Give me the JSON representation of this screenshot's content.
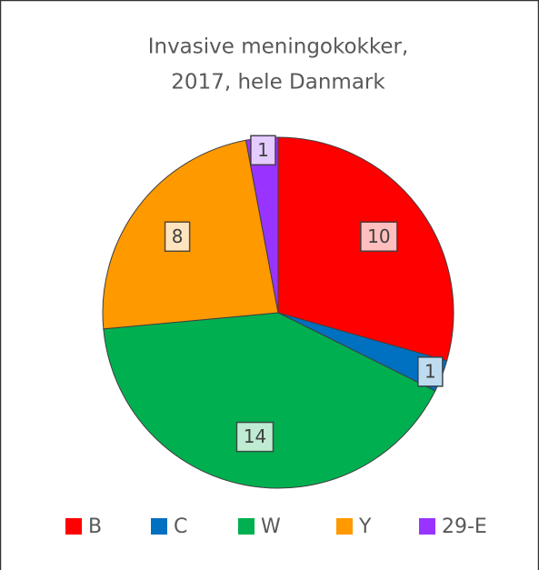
{
  "chart_data": {
    "type": "pie",
    "title": [
      "Invasive meningokokker,",
      "2017, hele Danmark"
    ],
    "categories": [
      "B",
      "C",
      "W",
      "Y",
      "29-E"
    ],
    "values": [
      10,
      1,
      14,
      8,
      1
    ],
    "colors": [
      "#ff0000",
      "#0070c0",
      "#00b050",
      "#ff9900",
      "#9933ff"
    ],
    "legend": "bottom"
  }
}
